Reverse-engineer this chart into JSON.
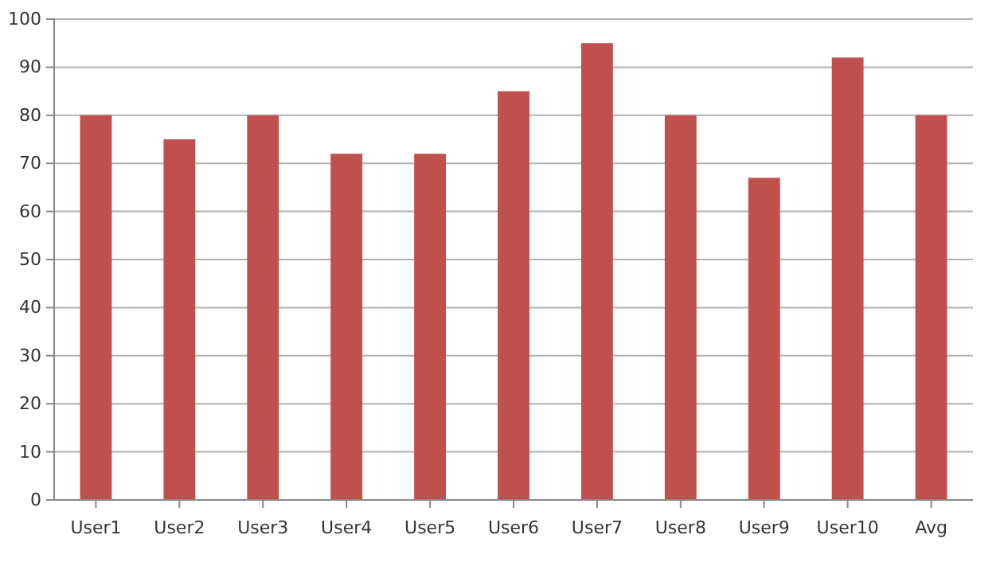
{
  "chart_data": {
    "type": "bar",
    "categories": [
      "User1",
      "User2",
      "User3",
      "User4",
      "User5",
      "User6",
      "User7",
      "User8",
      "User9",
      "User10",
      "Avg"
    ],
    "values": [
      80,
      75,
      80,
      72,
      72,
      85,
      95,
      80,
      67,
      92,
      80
    ],
    "color": "#c0504d",
    "ylim": [
      0,
      100
    ],
    "yticks": [
      0,
      10,
      20,
      30,
      40,
      50,
      60,
      70,
      80,
      90,
      100
    ],
    "grid": "y"
  }
}
